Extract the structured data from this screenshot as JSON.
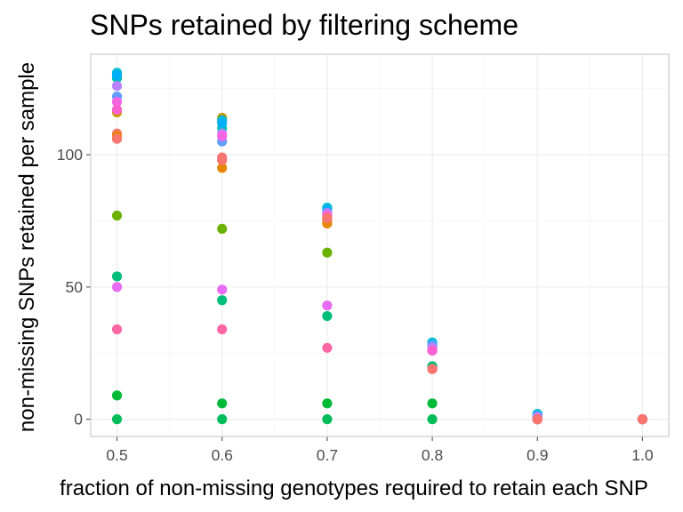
{
  "chart_data": {
    "type": "scatter",
    "title": "SNPs retained by filtering scheme",
    "xlabel": "fraction of non-missing genotypes required to retain each SNP",
    "ylabel": "non-missing SNPs retained per sample",
    "xlim": [
      0.475,
      1.025
    ],
    "ylim": [
      -6.5,
      138
    ],
    "x_ticks": [
      0.5,
      0.6,
      0.7,
      0.8,
      0.9,
      1.0
    ],
    "x_tick_labels": [
      "0.5",
      "0.6",
      "0.7",
      "0.8",
      "0.9",
      "1.0"
    ],
    "y_ticks": [
      0,
      50,
      100
    ],
    "y_tick_labels": [
      "0",
      "50",
      "100"
    ],
    "grid": true,
    "legend": "none",
    "series": [
      {
        "color": "#F8766D",
        "points": [
          [
            0.5,
            108
          ],
          [
            0.6,
            99
          ],
          [
            0.7,
            75
          ],
          [
            0.8,
            19
          ],
          [
            0.9,
            0
          ],
          [
            1.0,
            0
          ]
        ]
      },
      {
        "color": "#E58700",
        "points": [
          [
            0.5,
            107
          ],
          [
            0.6,
            95
          ],
          [
            0.7,
            74
          ],
          [
            0.8,
            20
          ],
          [
            0.9,
            0
          ],
          [
            1.0,
            0
          ]
        ]
      },
      {
        "color": "#C99800",
        "points": [
          [
            0.5,
            116
          ],
          [
            0.6,
            114
          ],
          [
            0.7,
            76
          ],
          [
            0.8,
            28
          ],
          [
            0.9,
            0
          ],
          [
            1.0,
            0
          ]
        ]
      },
      {
        "color": "#A3A500",
        "points": [
          [
            0.5,
            117
          ],
          [
            0.6,
            113
          ],
          [
            0.7,
            77
          ],
          [
            0.8,
            28
          ],
          [
            0.9,
            1
          ],
          [
            1.0,
            0
          ]
        ]
      },
      {
        "color": "#6BB100",
        "points": [
          [
            0.5,
            77
          ],
          [
            0.6,
            72
          ],
          [
            0.7,
            63
          ],
          [
            0.8,
            20
          ],
          [
            0.9,
            0
          ],
          [
            1.0,
            0
          ]
        ]
      },
      {
        "color": "#00BA38",
        "points": [
          [
            0.5,
            9
          ],
          [
            0.6,
            6
          ],
          [
            0.7,
            6
          ],
          [
            0.8,
            6
          ],
          [
            0.9,
            0
          ],
          [
            1.0,
            0
          ]
        ]
      },
      {
        "color": "#00BC59",
        "points": [
          [
            0.5,
            0
          ],
          [
            0.6,
            0
          ],
          [
            0.7,
            0
          ],
          [
            0.8,
            0
          ],
          [
            0.9,
            0
          ],
          [
            1.0,
            0
          ]
        ]
      },
      {
        "color": "#00BF7D",
        "points": [
          [
            0.5,
            54
          ],
          [
            0.6,
            45
          ],
          [
            0.7,
            39
          ],
          [
            0.8,
            20
          ],
          [
            0.9,
            0
          ],
          [
            1.0,
            0
          ]
        ]
      },
      {
        "color": "#00C0AF",
        "points": [
          [
            0.5,
            129
          ],
          [
            0.6,
            110
          ],
          [
            0.7,
            78
          ],
          [
            0.8,
            29
          ],
          [
            0.9,
            2
          ],
          [
            1.0,
            0
          ]
        ]
      },
      {
        "color": "#00BCD8",
        "points": [
          [
            0.5,
            131
          ],
          [
            0.6,
            113
          ],
          [
            0.7,
            80
          ],
          [
            0.8,
            29
          ],
          [
            0.9,
            2
          ],
          [
            1.0,
            0
          ]
        ]
      },
      {
        "color": "#00B0F6",
        "points": [
          [
            0.5,
            130
          ],
          [
            0.6,
            112
          ],
          [
            0.7,
            79
          ],
          [
            0.8,
            28
          ],
          [
            0.9,
            1
          ],
          [
            1.0,
            0
          ]
        ]
      },
      {
        "color": "#619CFF",
        "points": [
          [
            0.5,
            122
          ],
          [
            0.6,
            105
          ],
          [
            0.7,
            78
          ],
          [
            0.8,
            28
          ],
          [
            0.9,
            1
          ],
          [
            1.0,
            0
          ]
        ]
      },
      {
        "color": "#B983FF",
        "points": [
          [
            0.5,
            126
          ],
          [
            0.6,
            108
          ],
          [
            0.7,
            78
          ],
          [
            0.8,
            27
          ],
          [
            0.9,
            1
          ],
          [
            1.0,
            0
          ]
        ]
      },
      {
        "color": "#E76BF3",
        "points": [
          [
            0.5,
            50
          ],
          [
            0.6,
            49
          ],
          [
            0.7,
            43
          ],
          [
            0.8,
            26
          ],
          [
            0.9,
            0
          ],
          [
            1.0,
            0
          ]
        ]
      },
      {
        "color": "#F564E3",
        "points": [
          [
            0.5,
            120
          ],
          [
            0.6,
            107
          ],
          [
            0.7,
            76
          ],
          [
            0.8,
            26
          ],
          [
            0.9,
            0
          ],
          [
            1.0,
            0
          ]
        ]
      },
      {
        "color": "#FD61D1",
        "points": [
          [
            0.5,
            117
          ],
          [
            0.6,
            98
          ],
          [
            0.7,
            77
          ],
          [
            0.8,
            26
          ],
          [
            0.9,
            0
          ],
          [
            1.0,
            0
          ]
        ]
      },
      {
        "color": "#FF67A4",
        "points": [
          [
            0.5,
            34
          ],
          [
            0.6,
            34
          ],
          [
            0.7,
            27
          ],
          [
            0.8,
            19
          ],
          [
            0.9,
            0
          ],
          [
            1.0,
            0
          ]
        ]
      },
      {
        "color": "#F8766D",
        "points": [
          [
            0.5,
            106
          ],
          [
            0.6,
            98
          ],
          [
            0.7,
            76
          ],
          [
            0.8,
            19
          ],
          [
            0.9,
            0
          ],
          [
            1.0,
            0
          ]
        ]
      }
    ]
  }
}
